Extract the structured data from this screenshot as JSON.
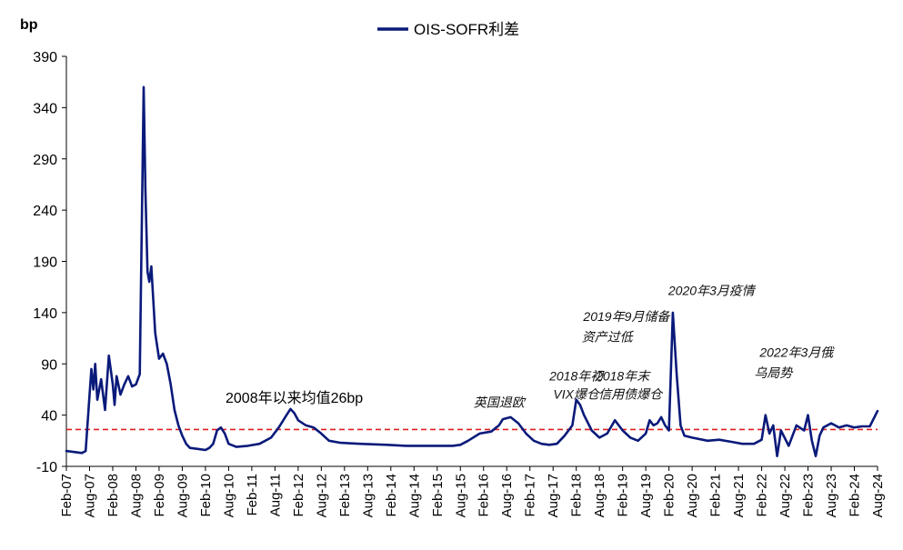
{
  "chart_data": {
    "type": "line",
    "ylabel": "bp",
    "ylim": [
      -10,
      390
    ],
    "yticks": [
      -10,
      40,
      90,
      140,
      190,
      240,
      290,
      340,
      390
    ],
    "xlim": [
      "2007-02",
      "2024-08"
    ],
    "xticks": [
      "Feb-07",
      "Aug-07",
      "Feb-08",
      "Aug-08",
      "Feb-09",
      "Aug-09",
      "Feb-10",
      "Aug-10",
      "Feb-11",
      "Aug-11",
      "Feb-12",
      "Aug-12",
      "Feb-13",
      "Aug-13",
      "Feb-14",
      "Aug-14",
      "Feb-15",
      "Aug-15",
      "Feb-16",
      "Aug-16",
      "Feb-17",
      "Aug-17",
      "Feb-18",
      "Aug-18",
      "Feb-19",
      "Aug-19",
      "Feb-20",
      "Aug-20",
      "Feb-21",
      "Aug-21",
      "Feb-22",
      "Aug-22",
      "Feb-23",
      "Aug-23",
      "Feb-24",
      "Aug-24"
    ],
    "grid": false,
    "legend_position": "top-center",
    "series": [
      {
        "name": "OIS-SOFR利差",
        "color": "#0a1a7a",
        "points": [
          [
            "2007-02",
            5
          ],
          [
            "2007-04",
            4
          ],
          [
            "2007-06",
            3
          ],
          [
            "2007-07",
            5
          ],
          [
            "2007-08",
            60
          ],
          [
            "2007-08-15",
            85
          ],
          [
            "2007-09",
            65
          ],
          [
            "2007-09-15",
            90
          ],
          [
            "2007-10",
            55
          ],
          [
            "2007-11",
            75
          ],
          [
            "2007-12",
            45
          ],
          [
            "2008-01",
            98
          ],
          [
            "2008-02",
            70
          ],
          [
            "2008-02-15",
            50
          ],
          [
            "2008-03",
            78
          ],
          [
            "2008-04",
            60
          ],
          [
            "2008-05",
            70
          ],
          [
            "2008-06",
            78
          ],
          [
            "2008-07",
            68
          ],
          [
            "2008-08",
            70
          ],
          [
            "2008-09",
            80
          ],
          [
            "2008-10",
            360
          ],
          [
            "2008-10-15",
            260
          ],
          [
            "2008-11",
            180
          ],
          [
            "2008-11-15",
            170
          ],
          [
            "2008-12",
            185
          ],
          [
            "2009-01",
            120
          ],
          [
            "2009-02",
            95
          ],
          [
            "2009-03",
            100
          ],
          [
            "2009-04",
            90
          ],
          [
            "2009-05",
            70
          ],
          [
            "2009-06",
            45
          ],
          [
            "2009-07",
            30
          ],
          [
            "2009-08",
            20
          ],
          [
            "2009-09",
            12
          ],
          [
            "2009-10",
            8
          ],
          [
            "2009-12",
            7
          ],
          [
            "2010-02",
            6
          ],
          [
            "2010-03",
            8
          ],
          [
            "2010-04",
            12
          ],
          [
            "2010-05",
            25
          ],
          [
            "2010-06",
            28
          ],
          [
            "2010-07",
            22
          ],
          [
            "2010-08",
            12
          ],
          [
            "2010-10",
            9
          ],
          [
            "2011-01",
            10
          ],
          [
            "2011-04",
            12
          ],
          [
            "2011-07",
            18
          ],
          [
            "2011-09",
            28
          ],
          [
            "2011-11",
            40
          ],
          [
            "2011-12",
            46
          ],
          [
            "2012-01",
            42
          ],
          [
            "2012-02",
            35
          ],
          [
            "2012-04",
            30
          ],
          [
            "2012-06",
            28
          ],
          [
            "2012-08",
            22
          ],
          [
            "2012-10",
            15
          ],
          [
            "2013-01",
            13
          ],
          [
            "2013-06",
            12
          ],
          [
            "2014-01",
            11
          ],
          [
            "2014-06",
            10
          ],
          [
            "2015-01",
            10
          ],
          [
            "2015-06",
            10
          ],
          [
            "2015-08",
            11
          ],
          [
            "2015-10",
            15
          ],
          [
            "2016-01",
            22
          ],
          [
            "2016-04",
            24
          ],
          [
            "2016-06",
            30
          ],
          [
            "2016-07",
            36
          ],
          [
            "2016-09",
            38
          ],
          [
            "2016-11",
            32
          ],
          [
            "2017-01",
            22
          ],
          [
            "2017-03",
            15
          ],
          [
            "2017-05",
            12
          ],
          [
            "2017-07",
            11
          ],
          [
            "2017-09",
            12
          ],
          [
            "2017-11",
            20
          ],
          [
            "2018-01",
            30
          ],
          [
            "2018-02",
            55
          ],
          [
            "2018-03",
            50
          ],
          [
            "2018-04",
            40
          ],
          [
            "2018-06",
            25
          ],
          [
            "2018-08",
            18
          ],
          [
            "2018-10",
            22
          ],
          [
            "2018-12",
            35
          ],
          [
            "2019-02",
            25
          ],
          [
            "2019-04",
            18
          ],
          [
            "2019-06",
            15
          ],
          [
            "2019-08",
            22
          ],
          [
            "2019-09",
            35
          ],
          [
            "2019-10",
            30
          ],
          [
            "2019-11",
            32
          ],
          [
            "2019-12",
            38
          ],
          [
            "2020-01",
            30
          ],
          [
            "2020-02",
            25
          ],
          [
            "2020-03",
            140
          ],
          [
            "2020-04",
            80
          ],
          [
            "2020-05",
            30
          ],
          [
            "2020-06",
            20
          ],
          [
            "2020-08",
            18
          ],
          [
            "2020-12",
            15
          ],
          [
            "2021-03",
            16
          ],
          [
            "2021-06",
            14
          ],
          [
            "2021-09",
            12
          ],
          [
            "2021-12",
            12
          ],
          [
            "2022-02",
            16
          ],
          [
            "2022-03",
            40
          ],
          [
            "2022-04",
            22
          ],
          [
            "2022-05",
            30
          ],
          [
            "2022-06",
            0
          ],
          [
            "2022-07",
            25
          ],
          [
            "2022-09",
            10
          ],
          [
            "2022-11",
            30
          ],
          [
            "2023-01",
            25
          ],
          [
            "2023-02",
            40
          ],
          [
            "2023-03",
            15
          ],
          [
            "2023-04",
            0
          ],
          [
            "2023-05",
            20
          ],
          [
            "2023-06",
            28
          ],
          [
            "2023-08",
            32
          ],
          [
            "2023-10",
            28
          ],
          [
            "2023-12",
            30
          ],
          [
            "2024-02",
            28
          ],
          [
            "2024-04",
            29
          ],
          [
            "2024-06",
            29
          ],
          [
            "2024-08",
            44
          ]
        ]
      }
    ],
    "reference_line": {
      "value": 26,
      "color": "#e02020",
      "style": "dashed"
    },
    "annotations": [
      {
        "text": "2008年以来均值26bp",
        "x": "2012-01",
        "y": 52,
        "style": "plain"
      },
      {
        "text": "英国退欧",
        "x": "2016-06",
        "y": 48,
        "style": "italic"
      },
      {
        "text": "2018年初",
        "x": "2018-02",
        "y": 74,
        "style": "italic"
      },
      {
        "text": "VIX爆仓",
        "x": "2018-02",
        "y": 56,
        "style": "italic"
      },
      {
        "text": "2018年末",
        "x": "2019-02",
        "y": 74,
        "style": "italic"
      },
      {
        "text": "信用债爆仓",
        "x": "2019-04",
        "y": 56,
        "style": "italic"
      },
      {
        "text": "2019年9月储备",
        "x": "2019-03",
        "y": 132,
        "style": "italic"
      },
      {
        "text": "资产过低",
        "x": "2018-10",
        "y": 112,
        "style": "italic"
      },
      {
        "text": "2020年3月疫情",
        "x": "2021-01",
        "y": 157,
        "style": "italic"
      },
      {
        "text": "2022年3月俄",
        "x": "2022-11",
        "y": 97,
        "style": "italic"
      },
      {
        "text": "乌局势",
        "x": "2022-05",
        "y": 77,
        "style": "italic"
      }
    ]
  }
}
